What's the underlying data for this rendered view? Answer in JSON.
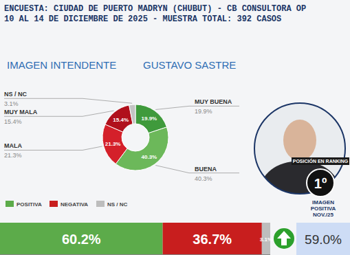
{
  "header": {
    "line1": "ENCUESTA: CIUDAD DE PUERTO MADRYN (CHUBUT) - CB CONSULTORA OP",
    "line2": "10 AL 14 DE DICIEMBRE DE 2025 - MUESTRA TOTAL: 392 CASOS"
  },
  "chart_data": [
    {
      "type": "pie",
      "title": "IMAGEN INTENDENTE",
      "subtitle": "GUSTAVO SASTRE",
      "categories": [
        "MUY BUENA",
        "BUENA",
        "MALA",
        "MUY MALA",
        "NS / NC"
      ],
      "values": [
        19.9,
        40.3,
        21.3,
        15.4,
        3.1
      ],
      "value_labels": [
        "19.9%",
        "40.3%",
        "21.3%",
        "15.4%",
        "3.1%"
      ],
      "colors": [
        "#3f9a3c",
        "#6cb85a",
        "#d4202a",
        "#b0101c",
        "#c4c4c4"
      ],
      "data_labels": true
    },
    {
      "type": "bar",
      "orientation": "horizontal",
      "stacked": true,
      "data_labels": true,
      "tick_labels": false,
      "categories": [
        null
      ],
      "xlim": [
        0,
        100
      ],
      "series": [
        {
          "name": "POSITIVA",
          "color": "#5cab4a",
          "values": [
            60.2
          ],
          "value_labels": [
            "60.2%"
          ]
        },
        {
          "name": "NEGATIVA",
          "color": "#c81e1e",
          "values": [
            36.7
          ],
          "value_labels": [
            "36.7%"
          ]
        },
        {
          "name": "NS / NC",
          "color": "#bdbdbd",
          "values": [
            3.1
          ],
          "value_labels": [
            "3.1%"
          ]
        }
      ]
    }
  ],
  "ranking": {
    "label": "POSICIÓN EN RANKING",
    "value": "1º"
  },
  "previous": {
    "label_lines": [
      "IMAGEN",
      "POSITIVA",
      "NOV./25"
    ],
    "value": "59.0%"
  }
}
